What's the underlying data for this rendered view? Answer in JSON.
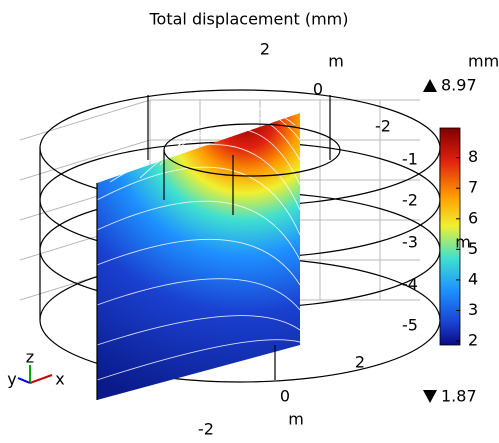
{
  "chart_data": {
    "type": "surface3d",
    "title": "Total displacement (mm)",
    "colorbar": {
      "unit": "mm",
      "clim": [
        1.87,
        8.97
      ],
      "ticks": [
        2,
        3,
        4,
        5,
        6,
        7,
        8
      ],
      "max": 8.97,
      "min": 1.87
    },
    "y_axis": {
      "label": "m",
      "ticks": [
        2,
        0,
        -2
      ]
    },
    "z_axis": {
      "label": "m",
      "ticks": [
        -1,
        -2,
        -3,
        -4,
        -5
      ]
    },
    "x_axis": {
      "label": "m",
      "ticks": [
        2,
        0,
        -2
      ]
    },
    "triad": [
      "y",
      "z",
      "x"
    ]
  }
}
